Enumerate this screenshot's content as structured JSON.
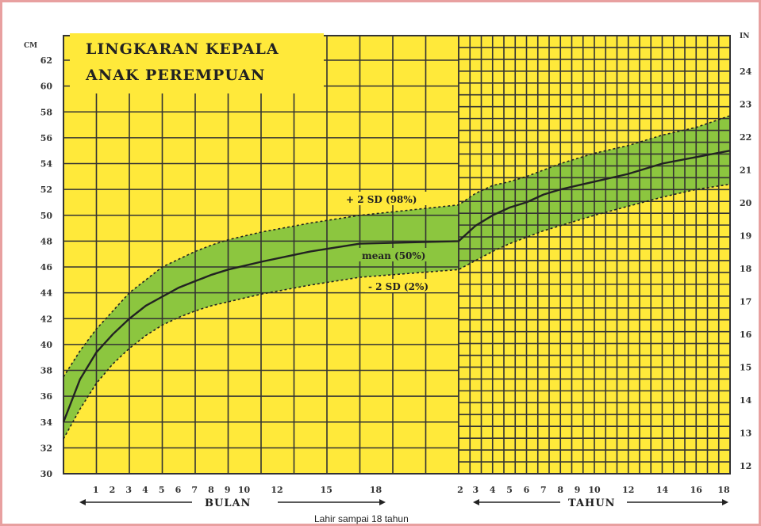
{
  "chart_data": {
    "type": "area",
    "title_lines": [
      "LINGKARAN KEPALA",
      "ANAK PEREMPUAN"
    ],
    "left_unit": "CM",
    "right_unit": "IN",
    "ylim_cm": [
      30,
      62
    ],
    "ylim_in": [
      12,
      24
    ],
    "left_ticks": [
      30,
      32,
      34,
      36,
      38,
      40,
      42,
      44,
      46,
      48,
      50,
      52,
      54,
      56,
      58,
      60,
      62
    ],
    "right_ticks": [
      12,
      13,
      14,
      15,
      16,
      17,
      18,
      19,
      20,
      21,
      22,
      23,
      24
    ],
    "months_ticks": [
      1,
      2,
      3,
      4,
      5,
      6,
      7,
      8,
      9,
      10,
      12,
      15,
      18
    ],
    "years_ticks": [
      2,
      3,
      4,
      5,
      6,
      7,
      8,
      9,
      10,
      12,
      14,
      16,
      18
    ],
    "months_label": "BULAN",
    "years_label": "TAHUN",
    "footer": "Lahir sampai 18 tahun",
    "annotations": {
      "upper": "+ 2 SD (98%)",
      "mean": "mean (50%)",
      "lower": "- 2 SD (2%)"
    },
    "series": [
      {
        "name": "mean (50%)",
        "months": {
          "x": [
            0,
            1,
            2,
            3,
            4,
            5,
            6,
            7,
            8,
            9,
            10,
            12,
            15,
            18,
            24
          ],
          "y": [
            34,
            37.3,
            39.4,
            40.8,
            42,
            43,
            43.7,
            44.4,
            44.9,
            45.4,
            45.8,
            46.4,
            47.2,
            47.8,
            48
          ]
        },
        "years": {
          "x": [
            2,
            3,
            4,
            5,
            6,
            7,
            8,
            9,
            10,
            12,
            14,
            16,
            18
          ],
          "y": [
            48,
            49.2,
            50,
            50.6,
            51,
            51.6,
            52,
            52.3,
            52.6,
            53.2,
            54,
            54.5,
            55
          ]
        }
      },
      {
        "name": "+ 2 SD (98%)",
        "months": {
          "x": [
            0,
            1,
            2,
            3,
            4,
            5,
            6,
            7,
            8,
            9,
            10,
            12,
            15,
            18,
            24
          ],
          "y": [
            37.5,
            39.5,
            41.2,
            42.6,
            44,
            45,
            46,
            46.6,
            47.2,
            47.7,
            48.1,
            48.7,
            49.4,
            50,
            50.8
          ]
        },
        "years": {
          "x": [
            2,
            3,
            4,
            5,
            6,
            7,
            8,
            9,
            10,
            12,
            14,
            16,
            18
          ],
          "y": [
            50.8,
            51.7,
            52.3,
            52.6,
            53,
            53.5,
            54,
            54.4,
            54.8,
            55.4,
            56.2,
            56.8,
            57.7
          ]
        }
      },
      {
        "name": "- 2 SD (2%)",
        "months": {
          "x": [
            0,
            1,
            2,
            3,
            4,
            5,
            6,
            7,
            8,
            9,
            10,
            12,
            15,
            18,
            24
          ],
          "y": [
            32.7,
            35,
            37,
            38.5,
            39.7,
            40.7,
            41.5,
            42.1,
            42.6,
            43,
            43.3,
            43.9,
            44.6,
            45.2,
            45.8
          ]
        },
        "years": {
          "x": [
            2,
            3,
            4,
            5,
            6,
            7,
            8,
            9,
            10,
            12,
            14,
            16,
            18
          ],
          "y": [
            45.8,
            46.5,
            47.2,
            47.8,
            48.3,
            48.8,
            49.2,
            49.6,
            50,
            50.7,
            51.4,
            52,
            52.4
          ]
        }
      }
    ],
    "colors": {
      "background": "#ffe93a",
      "band": "#8cc63f",
      "grid": "#333333",
      "curve": "#222222",
      "frame": "#e8a0a0"
    }
  }
}
